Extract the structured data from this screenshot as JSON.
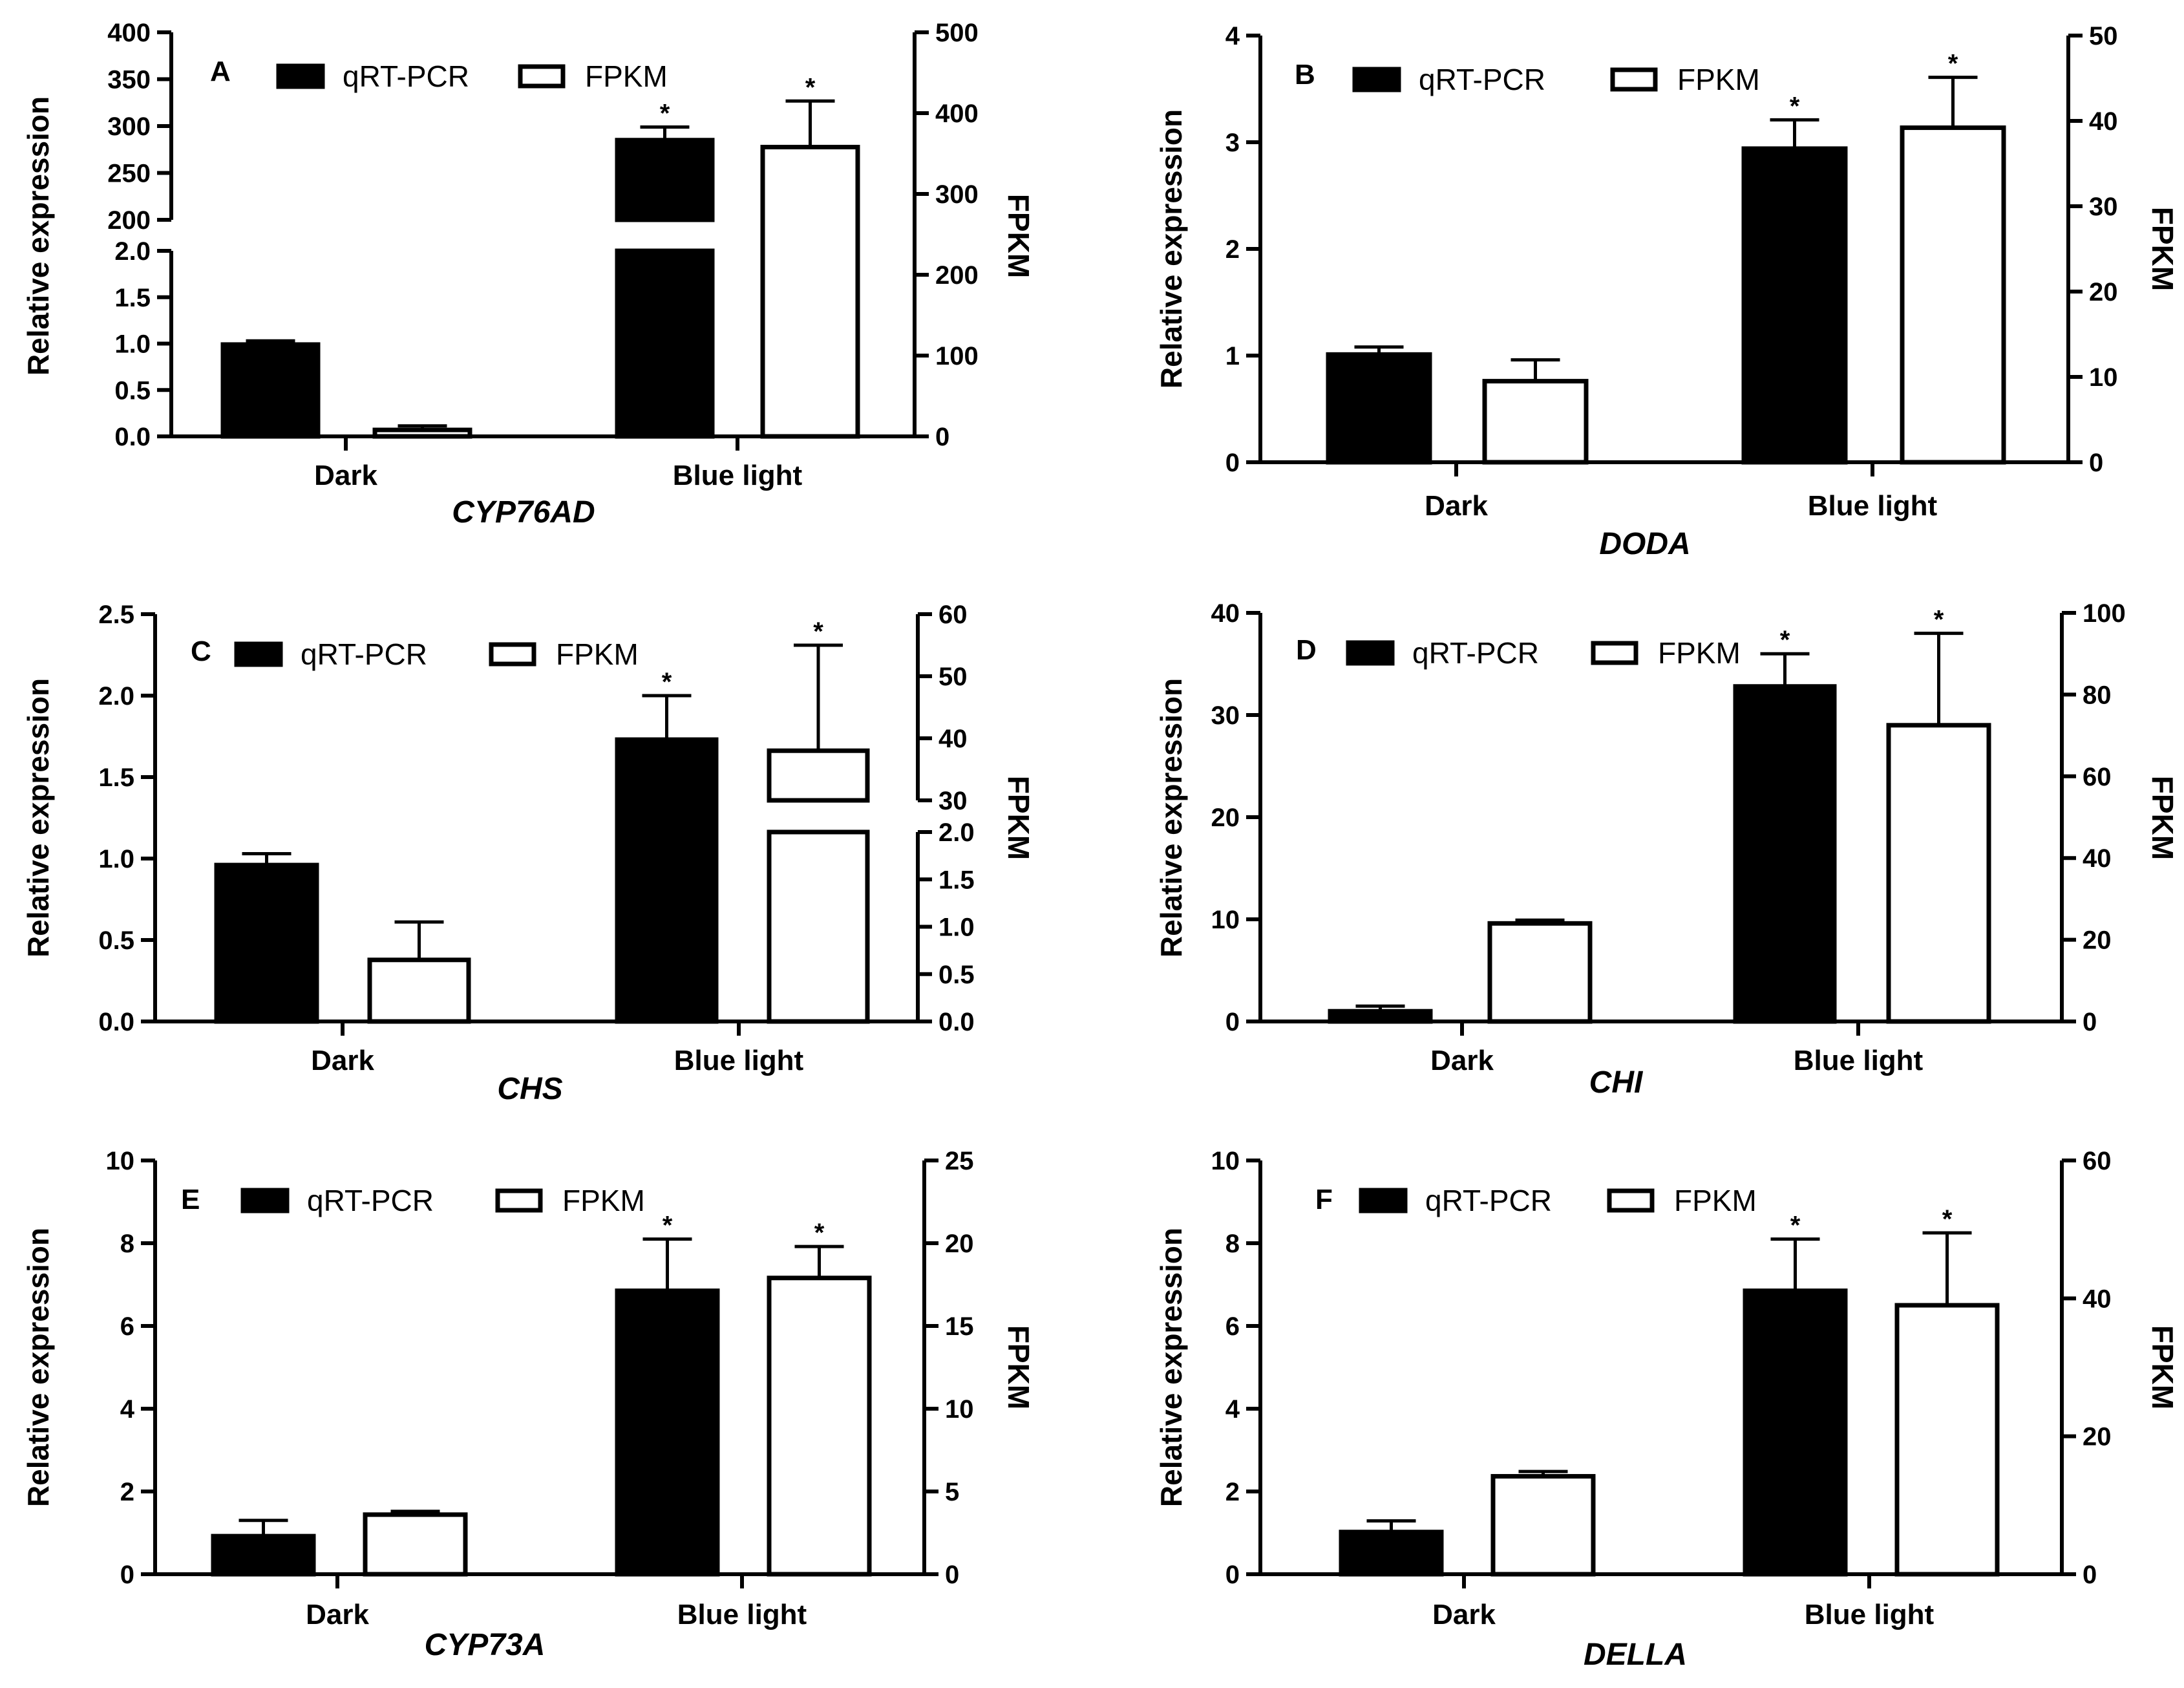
{
  "legend": {
    "qrt_label": "qRT-PCR",
    "fpkm_label": "FPKM"
  },
  "axis_titles": {
    "left": "Relative expression",
    "right": "FPKM"
  },
  "colors": {
    "qrt_fill": "#000000",
    "fpkm_fill": "#ffffff",
    "stroke": "#000000"
  },
  "chart_data": [
    {
      "panel": "A",
      "type": "bar",
      "gene": "CYP76AD",
      "categories": [
        "Dark",
        "Blue light"
      ],
      "series": [
        {
          "name": "qRT-PCR",
          "axis": "left",
          "values": [
            0.99,
            285
          ],
          "errors": [
            0.04,
            14
          ],
          "significant": [
            false,
            true
          ]
        },
        {
          "name": "FPKM",
          "axis": "right",
          "values": [
            8,
            358
          ],
          "errors": [
            5,
            57
          ],
          "significant": [
            false,
            true
          ]
        }
      ],
      "left_axis": {
        "segments": [
          {
            "range": [
              0,
              2.0
            ],
            "ticks": [
              "0.0",
              "0.5",
              "1.0",
              "1.5",
              "2.0"
            ]
          },
          {
            "range": [
              200,
              400
            ],
            "ticks": [
              "200",
              "250",
              "300",
              "350",
              "400"
            ]
          }
        ]
      },
      "right_axis": {
        "range": [
          0,
          500
        ],
        "ticks": [
          "0",
          "100",
          "200",
          "300",
          "400",
          "500"
        ]
      }
    },
    {
      "panel": "B",
      "type": "bar",
      "gene": "DODA",
      "categories": [
        "Dark",
        "Blue light"
      ],
      "series": [
        {
          "name": "qRT-PCR",
          "axis": "left",
          "values": [
            1.01,
            2.94
          ],
          "errors": [
            0.07,
            0.27
          ],
          "significant": [
            false,
            true
          ]
        },
        {
          "name": "FPKM",
          "axis": "right",
          "values": [
            9.5,
            39.2
          ],
          "errors": [
            2.5,
            5.9
          ],
          "significant": [
            false,
            true
          ]
        }
      ],
      "left_axis": {
        "range": [
          0,
          4
        ],
        "ticks": [
          "0",
          "1",
          "2",
          "3",
          "4"
        ]
      },
      "right_axis": {
        "range": [
          0,
          50
        ],
        "ticks": [
          "0",
          "10",
          "20",
          "30",
          "40",
          "50"
        ]
      }
    },
    {
      "panel": "C",
      "type": "bar",
      "gene": "CHS",
      "categories": [
        "Dark",
        "Blue light"
      ],
      "series": [
        {
          "name": "qRT-PCR",
          "axis": "left",
          "values": [
            0.96,
            1.73
          ],
          "errors": [
            0.07,
            0.27
          ],
          "significant": [
            false,
            true
          ]
        },
        {
          "name": "FPKM",
          "axis": "right",
          "values": [
            0.65,
            38
          ],
          "errors": [
            0.4,
            17
          ],
          "significant": [
            false,
            true
          ]
        }
      ],
      "left_axis": {
        "range": [
          0,
          2.5
        ],
        "ticks": [
          "0.0",
          "0.5",
          "1.0",
          "1.5",
          "2.0",
          "2.5"
        ]
      },
      "right_axis": {
        "segments": [
          {
            "range": [
              0,
              2.0
            ],
            "ticks": [
              "0.0",
              "0.5",
              "1.0",
              "1.5",
              "2.0"
            ]
          },
          {
            "range": [
              30,
              60
            ],
            "ticks": [
              "30",
              "40",
              "50",
              "60"
            ]
          }
        ]
      }
    },
    {
      "panel": "D",
      "type": "bar",
      "gene": "CHI",
      "categories": [
        "Dark",
        "Blue light"
      ],
      "series": [
        {
          "name": "qRT-PCR",
          "axis": "left",
          "values": [
            1.0,
            32.8
          ],
          "errors": [
            0.5,
            3.2
          ],
          "significant": [
            false,
            true
          ]
        },
        {
          "name": "FPKM",
          "axis": "right",
          "values": [
            24,
            72.5
          ],
          "errors": [
            0.8,
            22.5
          ],
          "significant": [
            false,
            true
          ]
        }
      ],
      "left_axis": {
        "range": [
          0,
          40
        ],
        "ticks": [
          "0",
          "10",
          "20",
          "30",
          "40"
        ]
      },
      "right_axis": {
        "range": [
          0,
          100
        ],
        "ticks": [
          "0",
          "20",
          "40",
          "60",
          "80",
          "100"
        ]
      }
    },
    {
      "panel": "E",
      "type": "bar",
      "gene": "CYP73A",
      "categories": [
        "Dark",
        "Blue light"
      ],
      "series": [
        {
          "name": "qRT-PCR",
          "axis": "left",
          "values": [
            0.92,
            6.85
          ],
          "errors": [
            0.38,
            1.25
          ],
          "significant": [
            false,
            true
          ]
        },
        {
          "name": "FPKM",
          "axis": "right",
          "values": [
            3.6,
            17.9
          ],
          "errors": [
            0.2,
            1.9
          ],
          "significant": [
            false,
            true
          ]
        }
      ],
      "left_axis": {
        "range": [
          0,
          10
        ],
        "ticks": [
          "0",
          "2",
          "4",
          "6",
          "8",
          "10"
        ]
      },
      "right_axis": {
        "range": [
          0,
          25
        ],
        "ticks": [
          "0",
          "5",
          "10",
          "15",
          "20",
          "25"
        ]
      }
    },
    {
      "panel": "F",
      "type": "bar",
      "gene": "DELLA",
      "categories": [
        "Dark",
        "Blue light"
      ],
      "series": [
        {
          "name": "qRT-PCR",
          "axis": "left",
          "values": [
            1.02,
            6.85
          ],
          "errors": [
            0.27,
            1.25
          ],
          "significant": [
            false,
            true
          ]
        },
        {
          "name": "FPKM",
          "axis": "right",
          "values": [
            14.2,
            39
          ],
          "errors": [
            0.7,
            10.5
          ],
          "significant": [
            false,
            true
          ]
        }
      ],
      "left_axis": {
        "range": [
          0,
          10
        ],
        "ticks": [
          "0",
          "2",
          "4",
          "6",
          "8",
          "10"
        ]
      },
      "right_axis": {
        "range": [
          0,
          60
        ],
        "ticks": [
          "0",
          "20",
          "40",
          "60"
        ]
      }
    }
  ]
}
